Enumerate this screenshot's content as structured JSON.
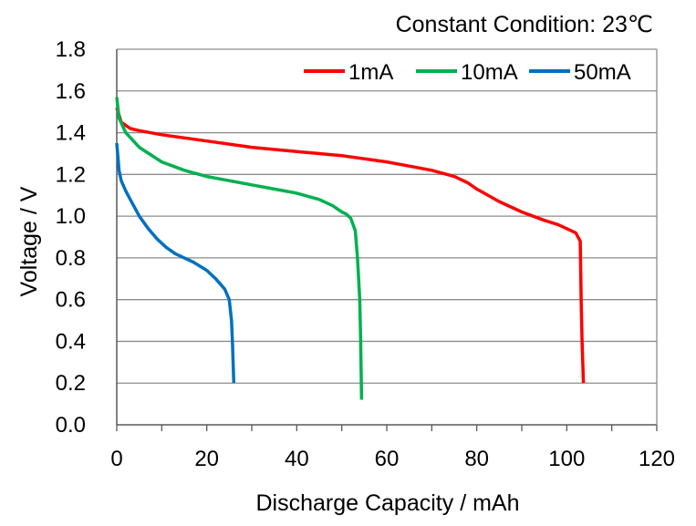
{
  "chart_data": {
    "type": "line",
    "title": "",
    "annotation": "Constant Condition: 23℃",
    "xlabel": "Discharge Capacity / mAh",
    "ylabel": "Voltage / V",
    "xlim": [
      0,
      120
    ],
    "ylim": [
      0,
      1.8
    ],
    "xticks": [
      0,
      20,
      40,
      60,
      80,
      100,
      120
    ],
    "yticks": [
      0.0,
      0.2,
      0.4,
      0.6,
      0.8,
      1.0,
      1.2,
      1.4,
      1.6,
      1.8
    ],
    "xtick_labels": [
      "0",
      "20",
      "40",
      "60",
      "80",
      "100",
      "120"
    ],
    "ytick_labels": [
      "0.0",
      "0.2",
      "0.4",
      "0.6",
      "0.8",
      "1.0",
      "1.2",
      "1.4",
      "1.6",
      "1.8"
    ],
    "grid": {
      "horizontal": true,
      "vertical": false
    },
    "legend_position": "top-right",
    "series": [
      {
        "name": "1mA",
        "color": "#ff0000",
        "points": [
          [
            0,
            1.52
          ],
          [
            1,
            1.45
          ],
          [
            3,
            1.42
          ],
          [
            5,
            1.41
          ],
          [
            10,
            1.39
          ],
          [
            20,
            1.36
          ],
          [
            30,
            1.33
          ],
          [
            40,
            1.31
          ],
          [
            50,
            1.29
          ],
          [
            60,
            1.26
          ],
          [
            65,
            1.24
          ],
          [
            70,
            1.22
          ],
          [
            75,
            1.19
          ],
          [
            78,
            1.16
          ],
          [
            80,
            1.13
          ],
          [
            85,
            1.07
          ],
          [
            90,
            1.02
          ],
          [
            95,
            0.98
          ],
          [
            98,
            0.96
          ],
          [
            100,
            0.94
          ],
          [
            102,
            0.92
          ],
          [
            103,
            0.88
          ],
          [
            103.2,
            0.6
          ],
          [
            103.4,
            0.4
          ],
          [
            103.7,
            0.2
          ]
        ]
      },
      {
        "name": "10mA",
        "color": "#00b050",
        "points": [
          [
            0,
            1.57
          ],
          [
            0.5,
            1.47
          ],
          [
            2,
            1.4
          ],
          [
            5,
            1.33
          ],
          [
            10,
            1.26
          ],
          [
            15,
            1.22
          ],
          [
            20,
            1.19
          ],
          [
            25,
            1.17
          ],
          [
            30,
            1.15
          ],
          [
            35,
            1.13
          ],
          [
            40,
            1.11
          ],
          [
            45,
            1.08
          ],
          [
            48,
            1.05
          ],
          [
            50,
            1.02
          ],
          [
            51,
            1.01
          ],
          [
            52,
            0.99
          ],
          [
            53,
            0.93
          ],
          [
            53.5,
            0.8
          ],
          [
            54,
            0.6
          ],
          [
            54.2,
            0.4
          ],
          [
            54.4,
            0.12
          ]
        ]
      },
      {
        "name": "50mA",
        "color": "#0070c0",
        "points": [
          [
            0,
            1.35
          ],
          [
            0.5,
            1.22
          ],
          [
            1,
            1.17
          ],
          [
            2,
            1.12
          ],
          [
            3,
            1.08
          ],
          [
            5,
            1.0
          ],
          [
            7,
            0.94
          ],
          [
            9,
            0.89
          ],
          [
            11,
            0.85
          ],
          [
            13,
            0.82
          ],
          [
            15,
            0.8
          ],
          [
            17,
            0.78
          ],
          [
            20,
            0.74
          ],
          [
            22,
            0.7
          ],
          [
            24,
            0.65
          ],
          [
            25,
            0.6
          ],
          [
            25.5,
            0.5
          ],
          [
            25.7,
            0.4
          ],
          [
            26,
            0.2
          ]
        ]
      }
    ]
  }
}
